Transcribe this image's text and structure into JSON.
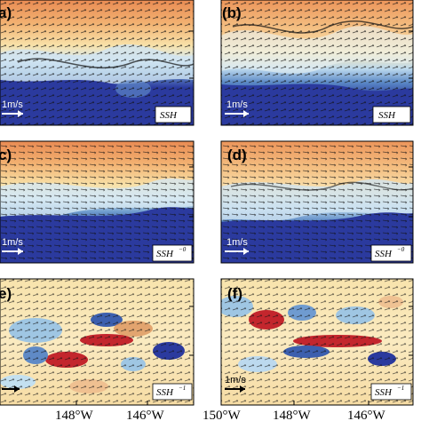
{
  "panels": [
    {
      "label": "a)",
      "scale": "1m/s",
      "field": "SSH",
      "sup": ""
    },
    {
      "label": "(b)",
      "scale": "1m/s",
      "field": "SSH",
      "sup": ""
    },
    {
      "label": "c)",
      "scale": "1m/s",
      "field": "SSH",
      "sup": "−0"
    },
    {
      "label": "(d)",
      "scale": "1m/s",
      "field": "SSH",
      "sup": "−0"
    },
    {
      "label": "e)",
      "scale": "",
      "field": "SSH",
      "sup": "−1"
    },
    {
      "label": "(f)",
      "scale": "1m/s",
      "field": "SSH",
      "sup": "−1"
    }
  ],
  "x_ticks_left": [
    "148°W",
    "146°W"
  ],
  "x_ticks_right": [
    "150°W",
    "148°W",
    "146°W"
  ],
  "colors": {
    "deep_blue": "#2b3a9e",
    "mid_blue": "#4f7fc0",
    "light_blue": "#bfdcef",
    "pale": "#fbf0c4",
    "orange": "#f0a35d",
    "red": "#c3262d"
  }
}
